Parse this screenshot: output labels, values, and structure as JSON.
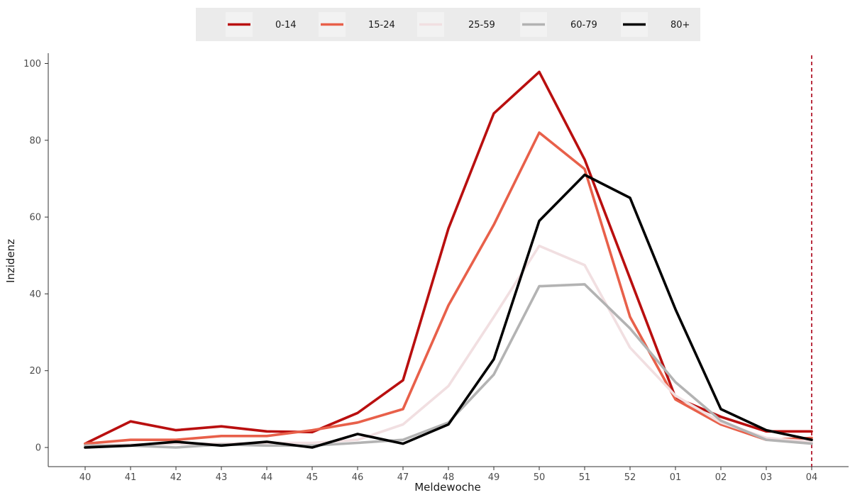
{
  "chart_data": {
    "type": "line",
    "title": "",
    "xlabel": "Meldewoche",
    "ylabel": "Inzidenz",
    "categories": [
      "40",
      "41",
      "42",
      "43",
      "44",
      "45",
      "46",
      "47",
      "48",
      "49",
      "50",
      "51",
      "52",
      "01",
      "02",
      "03",
      "04"
    ],
    "ylim": [
      0,
      100
    ],
    "yticks": [
      0,
      20,
      40,
      60,
      80,
      100
    ],
    "grid": false,
    "legend_position": "top",
    "reference_line": {
      "at": "04",
      "style": "dashed",
      "color": "#b2182b"
    },
    "series": [
      {
        "name": "0-14",
        "color": "#b90f0f",
        "values": [
          1.0,
          6.8,
          4.5,
          5.5,
          4.2,
          4.0,
          9.0,
          17.5,
          57.0,
          87.0,
          97.8,
          75.0,
          44.0,
          13.0,
          8.0,
          4.2,
          4.2
        ]
      },
      {
        "name": "15-24",
        "color": "#e8604a",
        "values": [
          1.0,
          2.0,
          2.0,
          3.0,
          3.0,
          4.5,
          6.5,
          10.0,
          37.0,
          58.0,
          82.0,
          72.5,
          34.0,
          12.5,
          6.0,
          2.0,
          2.5
        ]
      },
      {
        "name": "25-59",
        "color": "#f1dfe1",
        "values": [
          0.5,
          0.8,
          1.0,
          1.0,
          1.2,
          1.2,
          2.0,
          6.0,
          16.0,
          34.0,
          52.5,
          47.5,
          26.0,
          13.5,
          6.5,
          2.5,
          1.5
        ]
      },
      {
        "name": "60-79",
        "color": "#b3b3b3",
        "values": [
          0.5,
          0.5,
          0.0,
          0.8,
          0.5,
          0.5,
          1.2,
          2.0,
          6.5,
          19.0,
          42.0,
          42.5,
          31.0,
          17.0,
          7.0,
          2.0,
          1.0
        ]
      },
      {
        "name": "80+",
        "color": "#000000",
        "values": [
          0.0,
          0.5,
          1.5,
          0.5,
          1.5,
          0.0,
          3.5,
          1.0,
          6.0,
          23.0,
          59.0,
          71.0,
          65.0,
          36.0,
          10.0,
          4.5,
          2.0
        ]
      }
    ]
  }
}
